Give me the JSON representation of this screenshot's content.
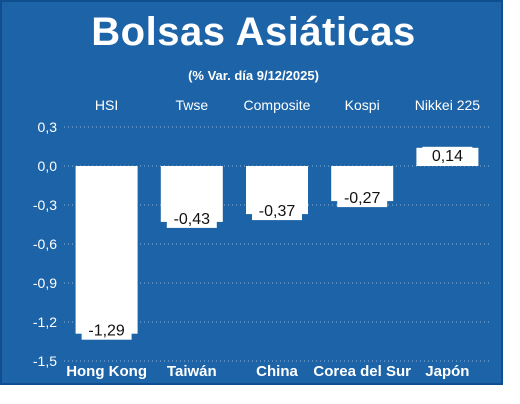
{
  "title": "Bolsas Asiáticas",
  "subtitle": "(% Var. día  9/12/2025)",
  "colors": {
    "background": "#1c63a7",
    "bar": "#ffffff",
    "text": "#ffffff",
    "grid": "#8fb4d8"
  },
  "chart_data": {
    "type": "bar",
    "indices": [
      "HSI",
      "Twse",
      "Composite",
      "Kospi",
      "Nikkei 225"
    ],
    "categories": [
      "Hong Kong",
      "Taiwán",
      "China",
      "Corea del Sur",
      "Japón"
    ],
    "values": [
      -1.29,
      -0.43,
      -0.37,
      -0.27,
      0.14
    ],
    "value_labels": [
      "-1,29",
      "-0,43",
      "-0,37",
      "-0,27",
      "0,14"
    ],
    "ylim": [
      -1.5,
      0.3
    ],
    "yticks": [
      0.3,
      0.0,
      -0.3,
      -0.6,
      -0.9,
      -1.2,
      -1.5
    ],
    "ytick_labels": [
      "0,3",
      "0,0",
      "-0,3",
      "-0,6",
      "-0,9",
      "-1,2",
      "-1,5"
    ],
    "grid": true,
    "xlabel": "",
    "ylabel": ""
  }
}
